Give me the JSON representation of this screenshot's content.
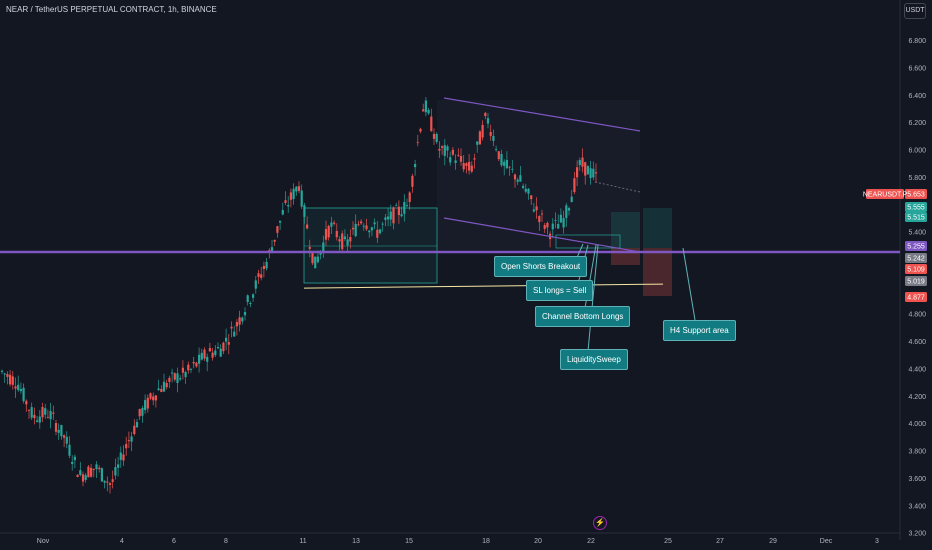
{
  "header": {
    "title": "NEAR / TetherUS PERPETUAL CONTRACT, 1h, BINANCE",
    "currency_button": "USDT"
  },
  "colors": {
    "background": "#131722",
    "up": "#26a69a",
    "down": "#ef5350",
    "purple": "#7e57c2",
    "callout_bg": "#127b82",
    "yellow_line": "#f5e6a3"
  },
  "annotations": {
    "open_shorts": "Open Shorts Breakout",
    "sl_longs": "SL longs = Sell",
    "channel_bottom": "Channel Bottom Longs",
    "liquidity_sweep": "LiquiditySweep",
    "h4_support": "H4 Support area"
  },
  "price_tags": {
    "symbol_label": "NEARUSDT.P",
    "last_price": "5.653",
    "tag_5555": "5.555",
    "tag_5515": "5.515",
    "tag_5255": "5.255",
    "tag_5242": "5.242",
    "tag_5109": "5.109",
    "tag_5019": "5.019",
    "tag_4877": "4.877"
  },
  "chart_data": {
    "type": "candlestick",
    "title": "NEAR / TetherUS PERPETUAL CONTRACT, 1h, BINANCE",
    "y_axis": {
      "ticks": [
        "6.800",
        "6.600",
        "6.400",
        "6.200",
        "6.000",
        "5.800",
        "5.400",
        "4.800",
        "4.600",
        "4.400",
        "4.200",
        "4.000",
        "3.800",
        "3.600",
        "3.400",
        "3.200"
      ],
      "ylim": [
        3.15,
        6.95
      ]
    },
    "x_axis": {
      "ticks": [
        "Nov",
        "4",
        "6",
        "8",
        "11",
        "13",
        "15",
        "18",
        "20",
        "22",
        "25",
        "27",
        "29",
        "Dec",
        "3"
      ]
    },
    "price_path": [
      {
        "x": "Nov 1",
        "y": 4.38
      },
      {
        "x": "Nov 1",
        "y": 4.3
      },
      {
        "x": "Nov 2",
        "y": 4.05
      },
      {
        "x": "Nov 2",
        "y": 4.08
      },
      {
        "x": "Nov 3",
        "y": 3.9
      },
      {
        "x": "Nov 4",
        "y": 3.62
      },
      {
        "x": "Nov 4",
        "y": 3.68
      },
      {
        "x": "Nov 5",
        "y": 3.55
      },
      {
        "x": "Nov 5",
        "y": 3.85
      },
      {
        "x": "Nov 6",
        "y": 4.1
      },
      {
        "x": "Nov 6",
        "y": 4.25
      },
      {
        "x": "Nov 7",
        "y": 4.33
      },
      {
        "x": "Nov 8",
        "y": 4.38
      },
      {
        "x": "Nov 8",
        "y": 4.5
      },
      {
        "x": "Nov 9",
        "y": 4.55
      },
      {
        "x": "Nov 9",
        "y": 4.72
      },
      {
        "x": "Nov 10",
        "y": 4.95
      },
      {
        "x": "Nov 11",
        "y": 5.2
      },
      {
        "x": "Nov 11",
        "y": 5.55
      },
      {
        "x": "Nov 12",
        "y": 5.75
      },
      {
        "x": "Nov 12",
        "y": 5.15
      },
      {
        "x": "Nov 13",
        "y": 5.45
      },
      {
        "x": "Nov 13",
        "y": 5.3
      },
      {
        "x": "Nov 14",
        "y": 5.5
      },
      {
        "x": "Nov 15",
        "y": 5.4
      },
      {
        "x": "Nov 15",
        "y": 5.52
      },
      {
        "x": "Nov 16",
        "y": 5.6
      },
      {
        "x": "Nov 16",
        "y": 6.35
      },
      {
        "x": "Nov 17",
        "y": 6.0
      },
      {
        "x": "Nov 17",
        "y": 5.95
      },
      {
        "x": "Nov 18",
        "y": 5.85
      },
      {
        "x": "Nov 18",
        "y": 6.25
      },
      {
        "x": "Nov 19",
        "y": 5.9
      },
      {
        "x": "Nov 19",
        "y": 5.8
      },
      {
        "x": "Nov 20",
        "y": 5.6
      },
      {
        "x": "Nov 20",
        "y": 5.4
      },
      {
        "x": "Nov 21",
        "y": 5.5
      },
      {
        "x": "Nov 21",
        "y": 5.9
      },
      {
        "x": "Nov 22",
        "y": 5.8
      }
    ],
    "horizontal_levels": [
      {
        "name": "purple support",
        "y": 5.255
      },
      {
        "name": "yellow line",
        "y": 5.02
      }
    ],
    "grid": false,
    "legend": "none"
  }
}
